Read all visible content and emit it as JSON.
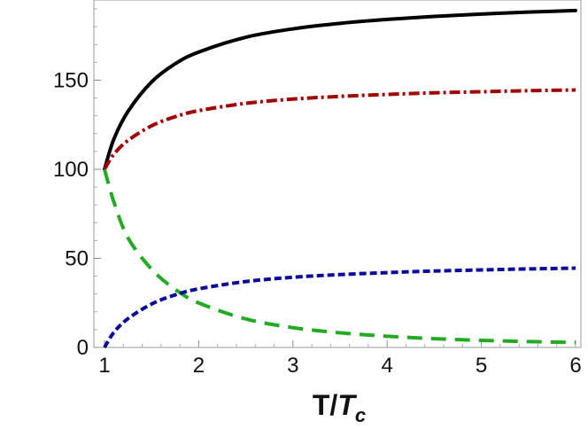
{
  "chart_data": {
    "type": "line",
    "title": "",
    "xlabel": {
      "main": "T/",
      "italic": "T",
      "subscript": "c"
    },
    "ylabel": "",
    "xlim": [
      1,
      6
    ],
    "ylim": [
      0,
      195
    ],
    "x_ticks": [
      1,
      2,
      3,
      4,
      5,
      6
    ],
    "y_ticks": [
      0,
      50,
      100,
      150
    ],
    "grid": false,
    "legend": "none",
    "series": [
      {
        "color": "#000000",
        "style": "solid",
        "x": [
          1,
          1.1,
          1.25,
          1.5,
          1.75,
          2,
          2.5,
          3,
          3.5,
          4,
          4.5,
          5,
          5.5,
          6
        ],
        "y": [
          100,
          117,
          132.5,
          149,
          159.2,
          165.8,
          174.1,
          178.8,
          181.9,
          184.1,
          185.8,
          187.1,
          188.2,
          189.1
        ]
      },
      {
        "color": "#a00000",
        "style": "dashdot",
        "x": [
          1,
          1.1,
          1.25,
          1.5,
          1.75,
          2,
          2.5,
          3,
          3.5,
          4,
          4.5,
          5,
          5.5,
          6
        ],
        "y": [
          100,
          108.5,
          116.2,
          124.4,
          129.5,
          132.9,
          137,
          139.4,
          140.9,
          142,
          142.9,
          143.5,
          144.1,
          144.5
        ]
      },
      {
        "color": "#22aa22",
        "style": "dashed",
        "x": [
          1,
          1.1,
          1.25,
          1.5,
          1.75,
          2,
          2.5,
          3,
          3.5,
          4,
          4.5,
          5,
          5.5,
          6
        ],
        "y": [
          100,
          81.6,
          61.5,
          43.9,
          32.6,
          25,
          16,
          11.1,
          8.2,
          6.3,
          4.9,
          4,
          3.3,
          2.8
        ]
      },
      {
        "color": "#0a0a9a",
        "style": "dotted",
        "x": [
          1,
          1.1,
          1.25,
          1.5,
          1.75,
          2,
          2.5,
          3,
          3.5,
          4,
          4.5,
          5,
          5.5,
          6
        ],
        "y": [
          0,
          8.5,
          16.2,
          24.4,
          29.5,
          32.9,
          37,
          39.4,
          40.9,
          42,
          42.9,
          43.5,
          44.1,
          44.5
        ]
      }
    ]
  }
}
